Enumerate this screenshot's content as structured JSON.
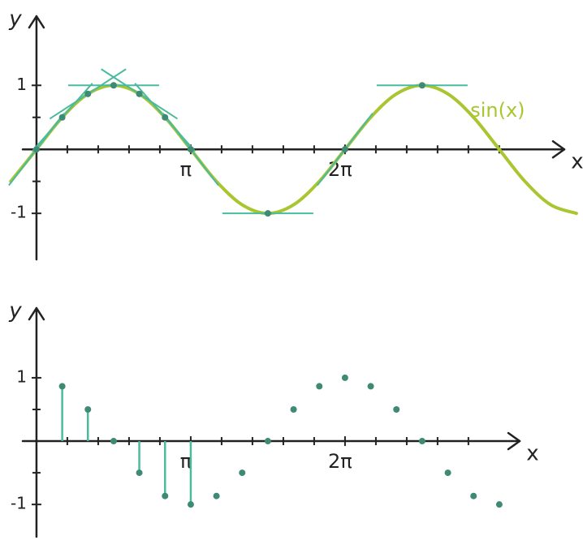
{
  "chart_data": [
    {
      "type": "line",
      "x_label": "x",
      "y_label": "y",
      "xlim": [
        -0.28,
        10.75
      ],
      "ylim": [
        -1.72,
        2.08
      ],
      "xticks": [
        {
          "value": 3.1416,
          "label": "π"
        },
        {
          "value": 6.2832,
          "label": "2π"
        }
      ],
      "minor_xticks": [
        0.628,
        1.257,
        1.885,
        2.513,
        3.77,
        4.398,
        5.027,
        5.655,
        6.912,
        7.54,
        8.168,
        8.796,
        9.425
      ],
      "yticks": [
        -1,
        1
      ],
      "minor_yticks": [
        -0.5,
        0.5
      ],
      "series": [
        {
          "name": "sin(x)",
          "color": "#a9c52f",
          "x": [
            -0.524,
            0,
            0.524,
            1.047,
            1.571,
            2.094,
            2.618,
            3.142,
            3.665,
            4.189,
            4.712,
            5.236,
            5.76,
            6.283,
            6.807,
            7.33,
            7.854,
            8.378,
            8.901,
            9.425,
            9.948,
            10.472,
            10.996
          ],
          "values": [
            -0.5,
            0,
            0.5,
            0.866,
            1,
            0.866,
            0.5,
            0,
            -0.5,
            -0.866,
            -1,
            -0.866,
            -0.5,
            0,
            0.5,
            0.866,
            1,
            0.866,
            0.5,
            0,
            -0.5,
            -0.866,
            -1
          ]
        }
      ],
      "tangents": {
        "color": "#4bbb9f",
        "point_color": "#3f8a74",
        "x": [
          0,
          0.524,
          1.047,
          1.571,
          2.094,
          2.618,
          3.142,
          4.712,
          6.283,
          7.854
        ],
        "values": [
          0,
          0.5,
          0.866,
          1,
          0.866,
          0.5,
          0,
          -1,
          0,
          1
        ],
        "slopes": [
          1,
          0.866,
          0.5,
          0,
          -0.5,
          -0.866,
          -1,
          0,
          1,
          0
        ]
      }
    },
    {
      "type": "stem",
      "x_label": "x",
      "y_label": "y",
      "xlim": [
        -0.28,
        9.84
      ],
      "ylim": [
        -1.51,
        2.1
      ],
      "xticks": [
        {
          "value": 3.1416,
          "label": "π"
        },
        {
          "value": 6.2832,
          "label": "2π"
        }
      ],
      "minor_xticks": [
        0.628,
        1.257,
        1.885,
        2.513,
        3.77,
        4.398,
        5.027,
        5.655,
        6.912,
        7.54,
        8.168,
        8.796
      ],
      "yticks": [
        -1,
        1
      ],
      "minor_yticks": [
        -0.5,
        0.5
      ],
      "series": [
        {
          "color": "#3f8a74",
          "stem_color": "#4bbb9f",
          "stems": true,
          "x": [
            0.524,
            1.047,
            1.571,
            2.094,
            2.618,
            3.142
          ],
          "values": [
            0.866,
            0.5,
            0,
            -0.5,
            -0.866,
            -1
          ]
        },
        {
          "color": "#3f8a74",
          "stems": false,
          "x": [
            3.665,
            4.189,
            4.712,
            5.236,
            5.76,
            6.283,
            6.807,
            7.33,
            7.854,
            8.378,
            8.901,
            9.425
          ],
          "values": [
            -0.866,
            -0.5,
            0,
            0.5,
            0.866,
            1,
            0.866,
            0.5,
            0,
            -0.5,
            -0.866,
            -1
          ]
        }
      ]
    }
  ]
}
